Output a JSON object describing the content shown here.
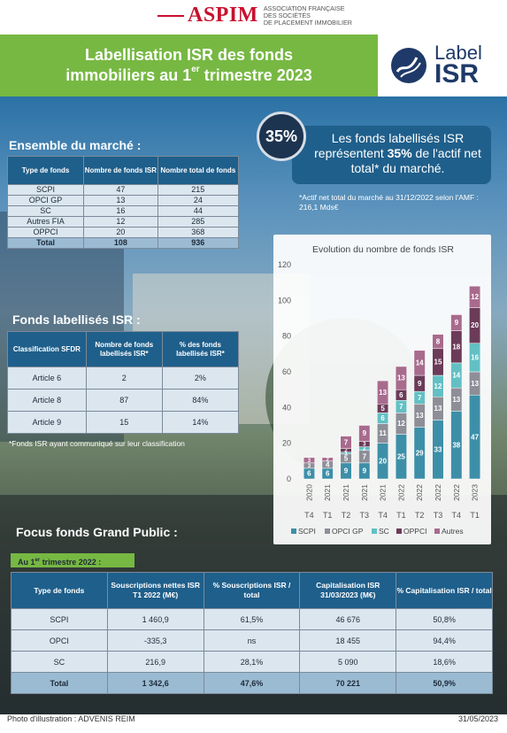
{
  "header": {
    "org_name": "ASPIM",
    "org_subtitle_1": "Association française",
    "org_subtitle_2": "des sociétés",
    "org_subtitle_3": "de placement immobilier",
    "title_line1": "Labellisation ISR des fonds",
    "title_line2_a": "immobiliers au 1",
    "title_line2_sup": "er",
    "title_line2_b": " trimestre 2023",
    "label_line1": "Label",
    "label_line2": "ISR"
  },
  "market": {
    "title": "Ensemble du marché :",
    "headers": [
      "Type de fonds",
      "Nombre de fonds ISR",
      "Nombre total de fonds"
    ],
    "rows": [
      [
        "SCPI",
        "47",
        "215"
      ],
      [
        "OPCI GP",
        "13",
        "24"
      ],
      [
        "SC",
        "16",
        "44"
      ],
      [
        "Autres FIA",
        "12",
        "285"
      ],
      [
        "OPPCI",
        "20",
        "368"
      ]
    ],
    "total": [
      "Total",
      "108",
      "936"
    ]
  },
  "highlight": {
    "percent": "35%",
    "text_a": "Les fonds labellisés ISR représentent ",
    "text_bold": "35%",
    "text_b": " de l'actif net total* du marché.",
    "note": "*Actif net total du marché au 31/12/2022 selon l'AMF : 216,1 Mds€"
  },
  "sfdr": {
    "title": "Fonds labellisés ISR :",
    "headers": [
      "Classification SFDR",
      "Nombre de fonds labellisés ISR*",
      "% des fonds labellisés ISR*"
    ],
    "rows": [
      [
        "Article 6",
        "2",
        "2%"
      ],
      [
        "Article 8",
        "87",
        "84%"
      ],
      [
        "Article 9",
        "15",
        "14%"
      ]
    ],
    "note": "*Fonds ISR ayant communiqué sur leur classification"
  },
  "chart_data": {
    "type": "bar",
    "stacked": true,
    "title": "Evolution du nombre de fonds ISR",
    "ylim": [
      0,
      120
    ],
    "yticks": [
      0,
      20,
      40,
      60,
      80,
      100,
      120
    ],
    "categories": [
      {
        "q": "T4",
        "y": "2020"
      },
      {
        "q": "T1",
        "y": "2021"
      },
      {
        "q": "T2",
        "y": "2021"
      },
      {
        "q": "T3",
        "y": "2021"
      },
      {
        "q": "T4",
        "y": "2021"
      },
      {
        "q": "T1",
        "y": "2022"
      },
      {
        "q": "T2",
        "y": "2022"
      },
      {
        "q": "T3",
        "y": "2022"
      },
      {
        "q": "T4",
        "y": "2022"
      },
      {
        "q": "T1",
        "y": "2023"
      }
    ],
    "series": [
      {
        "name": "SCPI",
        "color": "#3d8fa8",
        "values": [
          6,
          6,
          9,
          9,
          20,
          25,
          29,
          33,
          38,
          47
        ]
      },
      {
        "name": "OPCI GP",
        "color": "#8e8e98",
        "values": [
          3,
          4,
          5,
          7,
          11,
          12,
          13,
          13,
          13,
          13
        ]
      },
      {
        "name": "SC",
        "color": "#62c0c4",
        "values": [
          0,
          0,
          1,
          2,
          6,
          7,
          7,
          12,
          14,
          16
        ]
      },
      {
        "name": "OPPCI",
        "color": "#6b3b58",
        "values": [
          0,
          0,
          2,
          3,
          5,
          6,
          9,
          15,
          18,
          20
        ]
      },
      {
        "name": "Autres",
        "color": "#a86b8d",
        "values": [
          3,
          2,
          7,
          9,
          13,
          13,
          14,
          8,
          9,
          12
        ]
      }
    ],
    "labels": [
      [
        "6",
        "6",
        "9",
        "9",
        "20",
        "25",
        "29",
        "33",
        "38",
        "47"
      ],
      [
        "3",
        "4",
        "5",
        "7",
        "11",
        "12",
        "13",
        "13",
        "13",
        "13"
      ],
      [
        "",
        "",
        "1",
        "2",
        "6",
        "7",
        "7",
        "12",
        "14",
        "16"
      ],
      [
        "",
        "",
        "2",
        "3",
        "5",
        "6",
        "9",
        "15",
        "18",
        "20"
      ],
      [
        "3",
        "2",
        "7",
        "9",
        "13",
        "13",
        "14",
        "8",
        "9",
        "12"
      ]
    ],
    "legend_position": "bottom"
  },
  "focus": {
    "title": "Focus fonds Grand Public :",
    "banner_a": "Au 1",
    "banner_sup": "er",
    "banner_b": " trimestre 2022 :",
    "headers": [
      "Type de fonds",
      "Souscriptions nettes ISR T1 2022 (M€)",
      "% Souscriptions ISR / total",
      "Capitalisation ISR 31/03/2023 (M€)",
      "% Capitalisation ISR / total"
    ],
    "rows": [
      [
        "SCPI",
        "1 460,9",
        "61,5%",
        "46 676",
        "50,8%"
      ],
      [
        "OPCI",
        "-335,3",
        "ns",
        "18 455",
        "94,4%"
      ],
      [
        "SC",
        "216,9",
        "28,1%",
        "5 090",
        "18,6%"
      ]
    ],
    "total": [
      "Total",
      "1 342,6",
      "47,6%",
      "70 221",
      "50,9%"
    ]
  },
  "footer": {
    "credit": "Photo d'illustration : ADVENIS REIM",
    "date": "31/05/2023"
  }
}
